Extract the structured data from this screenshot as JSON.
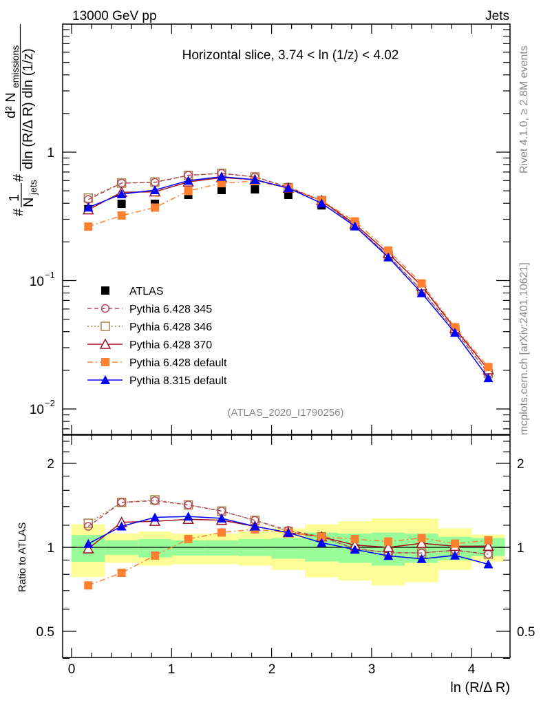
{
  "header": {
    "left": "13000 GeV pp",
    "right": "Jets"
  },
  "side_text": {
    "rivet": "Rivet 4.1.0, ≥ 2.8M events",
    "mcplots": "mcplots.cern.ch [arXiv:2401.10621]"
  },
  "chart_data": {
    "type": "scatter",
    "title": "Horizontal slice, 3.74 < ln (1/z) < 4.02",
    "analysis_tag": "(ATLAS_2020_I1790256)",
    "xlabel": "ln (R/Δ R)",
    "ylabel": {
      "numerator": "d² N",
      "num_sub": "emissions",
      "denominator": "dln (R/Δ R) dln (1/z)",
      "prefix_num": "1",
      "prefix_den": "N",
      "prefix_sub": "jets",
      "hash": "#"
    },
    "ratio_ylabel": "Ratio to ATLAS",
    "xlim": [
      -0.09,
      4.38
    ],
    "ylim": [
      0.0064,
      10
    ],
    "yscale": "log",
    "ratio_ylim": [
      0.4,
      2.52
    ],
    "ratio_yscale": "log",
    "x_ticks": [
      "0",
      "1",
      "2",
      "3",
      "4"
    ],
    "y_ticks": [
      {
        "v": 1,
        "label": "1"
      },
      {
        "v": 0.1,
        "label": "10",
        "exp": "−1"
      },
      {
        "v": 0.01,
        "label": "10",
        "exp": "−2"
      }
    ],
    "ratio_ticks": [
      {
        "v": 2,
        "label": "2"
      },
      {
        "v": 1,
        "label": "1"
      },
      {
        "v": 0.5,
        "label": "0.5"
      }
    ],
    "x": [
      0.167,
      0.5,
      0.833,
      1.167,
      1.5,
      1.833,
      2.167,
      2.5,
      2.833,
      3.167,
      3.5,
      3.833,
      4.167
    ],
    "bin_edges": [
      0,
      0.333,
      0.667,
      1.0,
      1.333,
      1.667,
      2.0,
      2.333,
      2.667,
      3.0,
      3.333,
      3.667,
      4.0,
      4.333
    ],
    "data_band_stat": [
      [
        0.888,
        1.107
      ],
      [
        0.94,
        1.06
      ],
      [
        0.92,
        1.07
      ],
      [
        0.935,
        1.06
      ],
      [
        0.935,
        1.06
      ],
      [
        0.93,
        1.07
      ],
      [
        0.91,
        1.08
      ],
      [
        0.89,
        1.13
      ],
      [
        0.88,
        1.12
      ],
      [
        0.86,
        1.13
      ],
      [
        0.88,
        1.12
      ],
      [
        0.9,
        1.09
      ],
      [
        0.93,
        1.08
      ]
    ],
    "data_band_total": [
      [
        0.783,
        1.21
      ],
      [
        0.88,
        1.12
      ],
      [
        0.86,
        1.14
      ],
      [
        0.87,
        1.12
      ],
      [
        0.87,
        1.12
      ],
      [
        0.86,
        1.14
      ],
      [
        0.83,
        1.17
      ],
      [
        0.78,
        1.21
      ],
      [
        0.76,
        1.24
      ],
      [
        0.73,
        1.27
      ],
      [
        0.75,
        1.27
      ],
      [
        0.83,
        1.17
      ],
      [
        0.89,
        1.11
      ]
    ],
    "series": [
      {
        "name": "ATLAS",
        "color": "#000000",
        "marker": "square-filled",
        "line": "none",
        "values": [
          0.36,
          0.396,
          0.396,
          0.465,
          0.507,
          0.513,
          0.465,
          0.385,
          0.27,
          0.163,
          0.088,
          0.042,
          0.02
        ]
      },
      {
        "name": "Pythia 6.428 345",
        "color": "#b0485a",
        "marker": "circle-open",
        "line": "dashed",
        "values": [
          0.428,
          0.574,
          0.582,
          0.66,
          0.684,
          0.641,
          0.535,
          0.42,
          0.267,
          0.156,
          0.084,
          0.041,
          0.0189
        ]
      },
      {
        "name": "Pythia 6.428 346",
        "color": "#a8804a",
        "marker": "square-open",
        "line": "dotted",
        "values": [
          0.439,
          0.574,
          0.586,
          0.66,
          0.684,
          0.641,
          0.53,
          0.42,
          0.267,
          0.156,
          0.084,
          0.041,
          0.0189
        ]
      },
      {
        "name": "Pythia 6.428 370",
        "color": "#a01020",
        "marker": "triangle-open",
        "line": "solid",
        "values": [
          0.356,
          0.487,
          0.491,
          0.586,
          0.634,
          0.61,
          0.525,
          0.42,
          0.275,
          0.163,
          0.091,
          0.0424,
          0.0202
        ]
      },
      {
        "name": "Pythia 6.428 default",
        "color": "#ff8030",
        "marker": "square-filled",
        "line": "dashdot",
        "values": [
          0.263,
          0.321,
          0.37,
          0.498,
          0.573,
          0.595,
          0.525,
          0.42,
          0.289,
          0.171,
          0.095,
          0.0433,
          0.0212
        ]
      },
      {
        "name": "Pythia 8.315 default",
        "color": "#0000ff",
        "marker": "triangle-filled",
        "line": "solid",
        "values": [
          0.371,
          0.471,
          0.507,
          0.6,
          0.644,
          0.61,
          0.525,
          0.4,
          0.265,
          0.152,
          0.08,
          0.0393,
          0.0174
        ]
      }
    ],
    "band_colors": {
      "stat": "#98fc98",
      "total": "#fdfd98"
    },
    "legend_position": "center-left"
  }
}
